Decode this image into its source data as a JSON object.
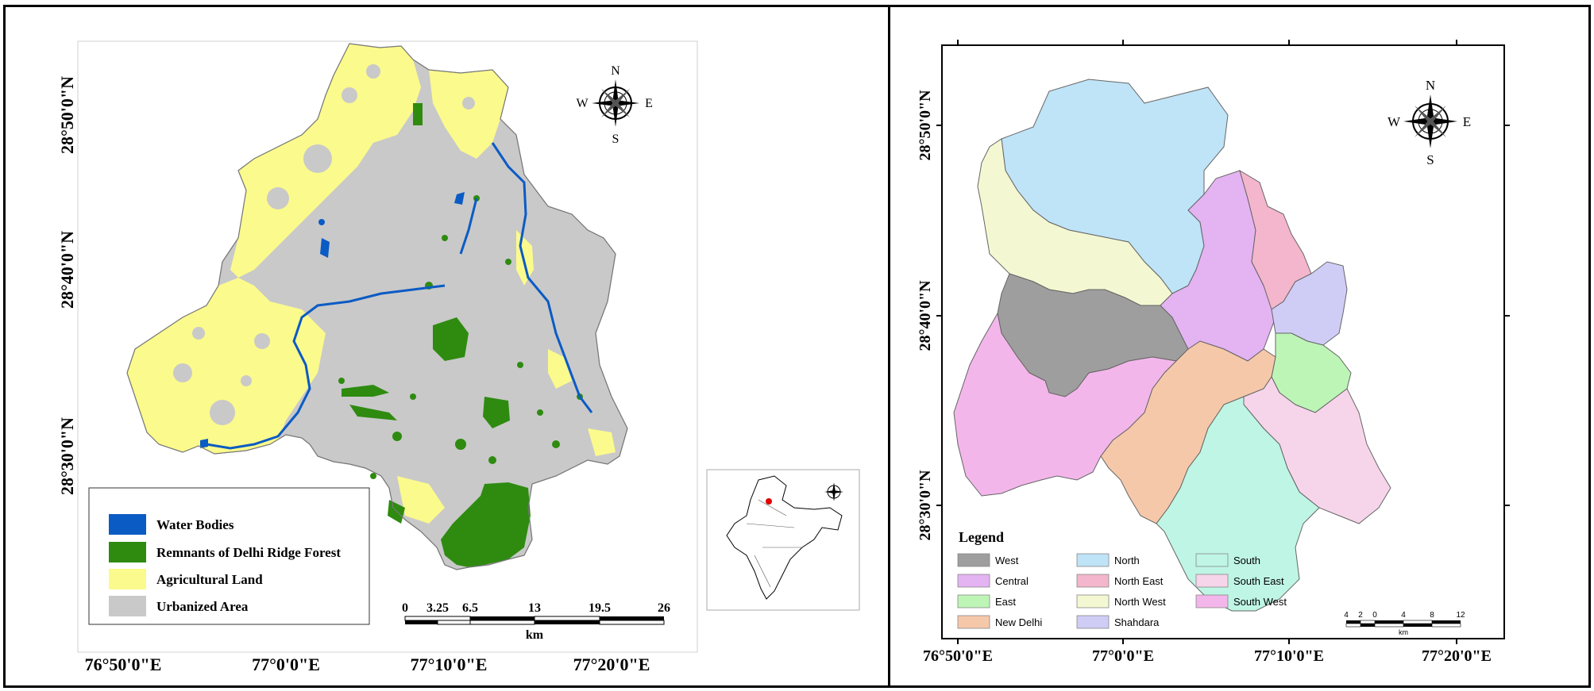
{
  "left_map": {
    "lat_labels": [
      "28°50'0\"N",
      "28°40'0\"N",
      "28°30'0\"N"
    ],
    "lon_labels": [
      "76°50'0\"E",
      "77°0'0\"E",
      "77°10'0\"E",
      "77°20'0\"E"
    ],
    "compass": {
      "n": "N",
      "s": "S",
      "e": "E",
      "w": "W"
    },
    "legend": [
      {
        "label": "Water Bodies",
        "color": "#0b5bc4"
      },
      {
        "label": "Remnants of Delhi Ridge Forest",
        "color": "#2e8b10"
      },
      {
        "label": "Agricultural Land",
        "color": "#fbfa8c"
      },
      {
        "label": "Urbanized Area",
        "color": "#c9c9c9"
      }
    ],
    "scale": {
      "ticks": [
        "0",
        "3.25",
        "6.5",
        "13",
        "19.5",
        "26"
      ],
      "unit": "km"
    }
  },
  "right_map": {
    "lat_labels": [
      "28°50'0\"N",
      "28°40'0\"N",
      "28°30'0\"N"
    ],
    "lon_labels": [
      "76°50'0\"E",
      "77°0'0\"E",
      "77°10'0\"E",
      "77°20'0\"E"
    ],
    "compass": {
      "n": "N",
      "s": "S",
      "e": "E",
      "w": "W"
    },
    "legend_title": "Legend",
    "legend": [
      {
        "label": "West",
        "color": "#9e9e9e"
      },
      {
        "label": "North",
        "color": "#bfe3f7"
      },
      {
        "label": "South",
        "color": "#bff5e4"
      },
      {
        "label": "Central",
        "color": "#e4b3f2"
      },
      {
        "label": "North East",
        "color": "#f4b6cc"
      },
      {
        "label": "South East",
        "color": "#f6d5ea"
      },
      {
        "label": "East",
        "color": "#bdf5b6"
      },
      {
        "label": "North West",
        "color": "#f4f8d2"
      },
      {
        "label": "South West",
        "color": "#f3b6ea"
      },
      {
        "label": "New Delhi",
        "color": "#f6c8aa"
      },
      {
        "label": "Shahdara",
        "color": "#cfcdf5"
      }
    ],
    "scale": {
      "ticks": [
        "4",
        "2",
        "0",
        "4",
        "8",
        "12"
      ],
      "unit": "km"
    }
  }
}
